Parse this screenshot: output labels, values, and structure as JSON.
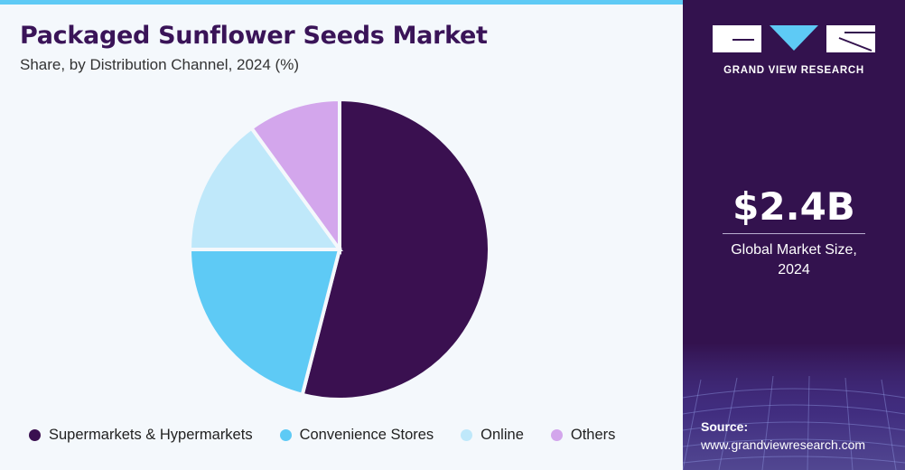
{
  "header": {
    "title": "Packaged Sunflower Seeds Market",
    "subtitle": "Share, by Distribution Channel, 2024 (%)"
  },
  "chart_data": {
    "type": "pie",
    "title": "Packaged Sunflower Seeds Market",
    "subtitle": "Share, by Distribution Channel, 2024 (%)",
    "categories": [
      "Supermarkets & Hypermarkets",
      "Convenience Stores",
      "Online",
      "Others"
    ],
    "values": [
      54,
      21,
      15,
      10
    ],
    "colors": [
      "#3a1050",
      "#5ecaf5",
      "#bfe8fa",
      "#d3a6ec"
    ],
    "start_angle": "12 o'clock",
    "direction": "clockwise",
    "legend_position": "bottom",
    "data_labels_shown": false
  },
  "legend": {
    "items": [
      {
        "label": "Supermarkets & Hypermarkets",
        "color": "#3a1050"
      },
      {
        "label": "Convenience Stores",
        "color": "#5ecaf5"
      },
      {
        "label": "Online",
        "color": "#bfe8fa"
      },
      {
        "label": "Others",
        "color": "#d3a6ec"
      }
    ]
  },
  "sidebar": {
    "logo_text": "GRAND VIEW RESEARCH",
    "market_size_value": "$2.4B",
    "market_size_label_line1": "Global Market Size,",
    "market_size_label_line2": "2024",
    "source_label": "Source:",
    "source_url": "www.grandviewresearch.com"
  }
}
